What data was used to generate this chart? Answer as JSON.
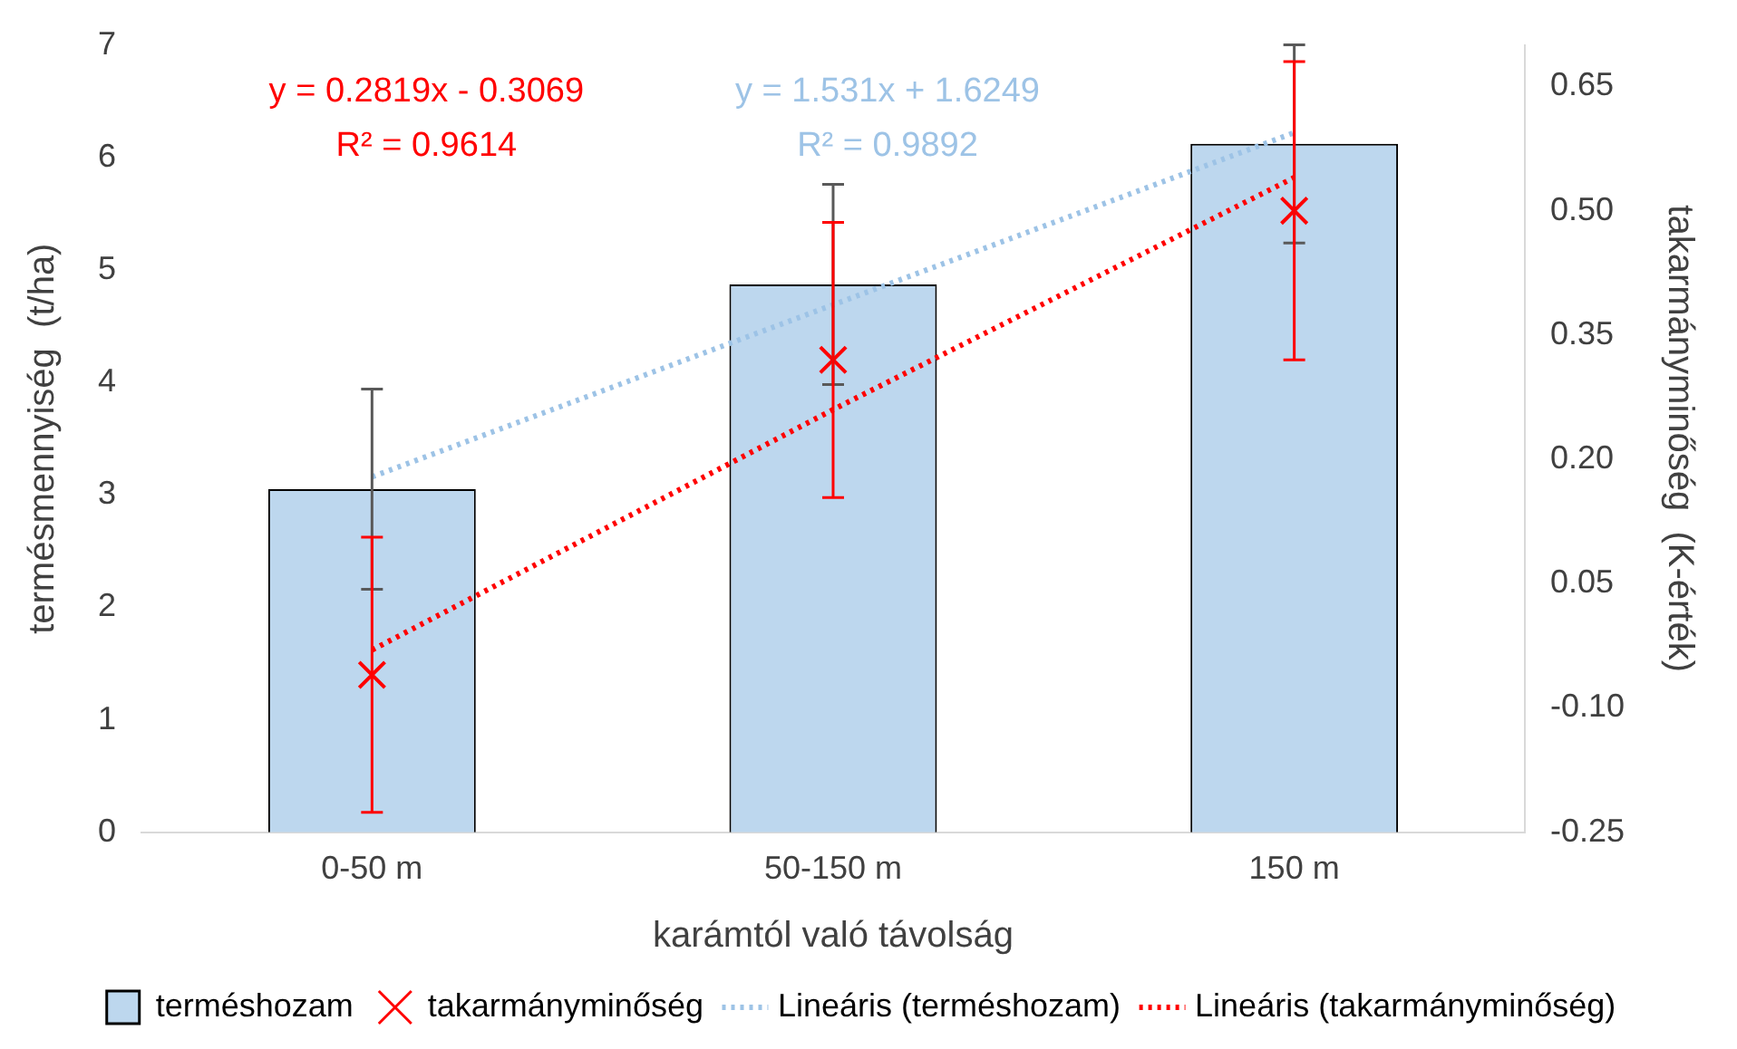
{
  "chart_data": {
    "type": "bar",
    "xlabel": "karámtól való távolság",
    "ylabel": "termésmennyiség  (t/ha)",
    "y2label": "takarmányminőség  (K-érték)",
    "categories": [
      "0-50 m",
      "50-150 m",
      "150 m"
    ],
    "series": [
      {
        "name": "terméshozam",
        "color": "#bdd7ee",
        "values": [
          3.05,
          4.87,
          6.12
        ],
        "errors": [
          0.89,
          0.89,
          0.88
        ]
      },
      {
        "name": "takarmányminőség",
        "type": "scatter",
        "axis": "y2",
        "marker": "cross",
        "color": "#ff0000",
        "x": [
          "0-50 m",
          "50-150 m",
          "150 m"
        ],
        "values": [
          -0.06,
          0.32,
          0.5
        ],
        "errors": [
          0.166,
          0.166,
          0.18
        ]
      },
      {
        "name": "Lineáris (terméshozam)",
        "type": "line",
        "line_style": "dotted",
        "color": "#9dc3e6",
        "values": [
          3.16,
          4.69,
          6.22
        ]
      },
      {
        "name": "Lineáris (takarmányminőség)",
        "type": "line",
        "axis": "y2",
        "line_style": "dotted",
        "color": "#ff0000",
        "values": [
          -0.03,
          0.26,
          0.54
        ]
      }
    ],
    "ylim": [
      0,
      7
    ],
    "yticks": [
      0,
      1,
      2,
      3,
      4,
      5,
      6,
      7
    ],
    "y2lim": [
      -0.25,
      0.7
    ],
    "y2ticks": [
      {
        "value": -0.25,
        "label": "-0.25"
      },
      {
        "value": -0.1,
        "label": "-0.10"
      },
      {
        "value": 0.05,
        "label": "0.05"
      },
      {
        "value": 0.2,
        "label": "0.20"
      },
      {
        "value": 0.35,
        "label": "0.35"
      },
      {
        "value": 0.5,
        "label": "0.50"
      },
      {
        "value": 0.65,
        "label": "0.65"
      }
    ],
    "annotations": [
      "y = 0.2819x - 0.3069",
      "R² = 0.9614",
      "y = 1.531x + 1.6249",
      "R² = 0.9892"
    ],
    "grid": false,
    "legend": "bottom"
  }
}
